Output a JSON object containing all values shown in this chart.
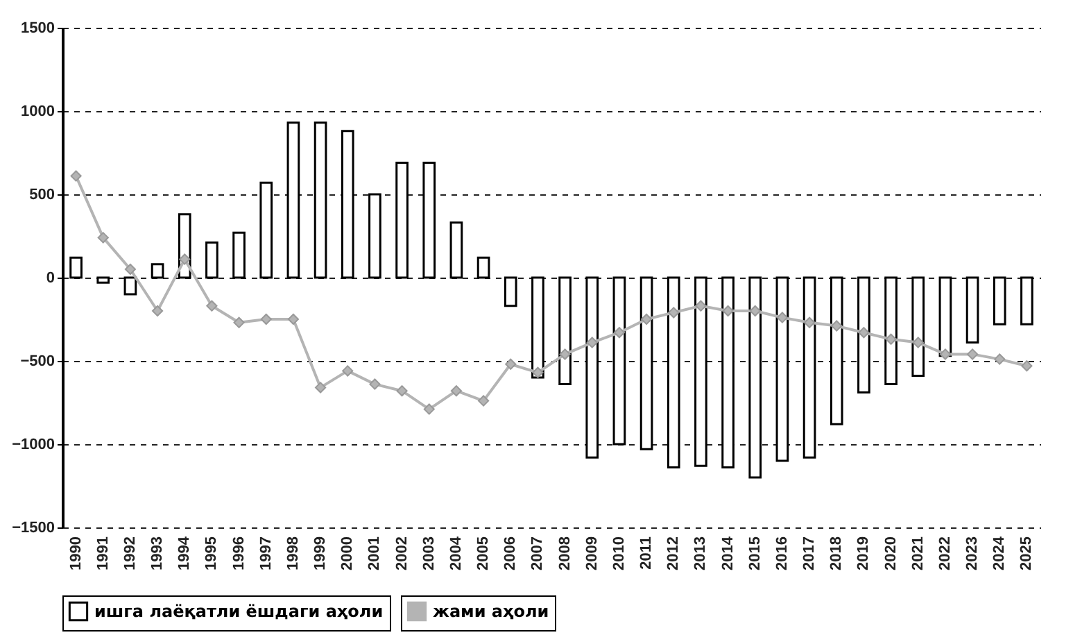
{
  "chart_data": {
    "type": "bar",
    "categories": [
      "1990",
      "1991",
      "1992",
      "1993",
      "1994",
      "1995",
      "1996",
      "1997",
      "1998",
      "1999",
      "2000",
      "2001",
      "2002",
      "2003",
      "2004",
      "2005",
      "2006",
      "2007",
      "2008",
      "2009",
      "2010",
      "2011",
      "2012",
      "2013",
      "2014",
      "2015",
      "2016",
      "2017",
      "2018",
      "2019",
      "2020",
      "2021",
      "2022",
      "2023",
      "2024",
      "2025"
    ],
    "series": [
      {
        "name": "ишга лаёқатли ёшдаги аҳоли",
        "color": "#ffffff",
        "values": [
          120,
          -30,
          -100,
          80,
          380,
          210,
          270,
          570,
          930,
          930,
          880,
          500,
          690,
          690,
          330,
          120,
          -170,
          -600,
          -640,
          -1080,
          -1000,
          -1030,
          -1140,
          -1130,
          -1140,
          -1200,
          -1100,
          -1080,
          -880,
          -690,
          -640,
          -590,
          -470,
          -390,
          -280,
          -280
        ]
      },
      {
        "name": "жами аҳоли",
        "type": "line",
        "color": "#b4b4b4",
        "values": [
          610,
          240,
          50,
          -200,
          110,
          -170,
          -270,
          -250,
          -250,
          -660,
          -560,
          -640,
          -680,
          -790,
          -680,
          -740,
          -520,
          -570,
          -460,
          -390,
          -330,
          -250,
          -210,
          -170,
          -200,
          -200,
          -240,
          -270,
          -290,
          -330,
          -370,
          -390,
          -460,
          -460,
          -490,
          -530
        ]
      }
    ],
    "ylim": [
      -1500,
      1500
    ],
    "yticks": [
      -1500,
      -1000,
      -500,
      0,
      500,
      1000,
      1500
    ],
    "grid": "y",
    "legend": "bottom",
    "marker": "diamond"
  }
}
